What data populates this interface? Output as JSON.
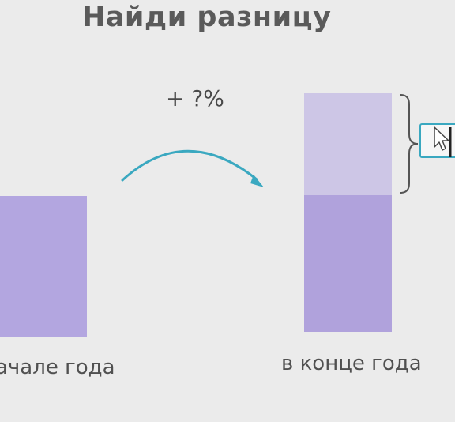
{
  "title": "Найди разницу",
  "change_label": "+ ?%",
  "labels": {
    "start": "ачале года",
    "end": "в конце года"
  },
  "answer": {
    "value": ""
  },
  "colors": {
    "bar": "#b3a6e0",
    "bar_increase": "#cdc6e6",
    "accent": "#3aa8c0"
  },
  "icons": {
    "arrow": "curved-arrow-icon",
    "brace": "right-brace-icon",
    "cursor": "mouse-cursor-icon"
  }
}
